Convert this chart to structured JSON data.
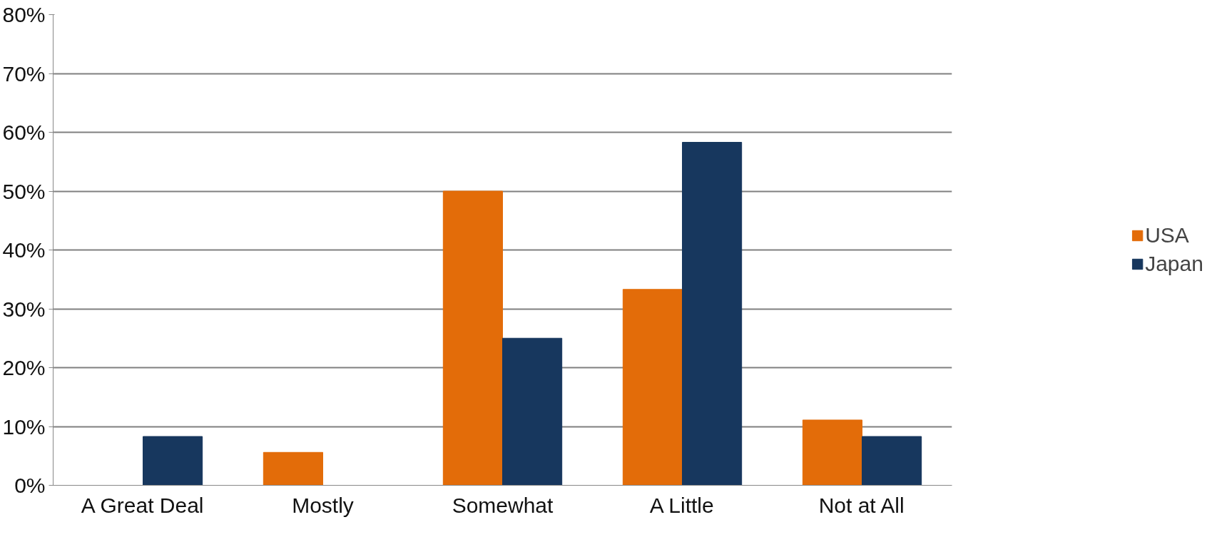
{
  "chart_data": {
    "type": "bar",
    "categories": [
      "A Great Deal",
      "Mostly",
      "Somewhat",
      "A Little",
      "Not at All"
    ],
    "series": [
      {
        "name": "USA",
        "color": "#e36c09",
        "values": [
          0,
          5.6,
          50,
          33.3,
          11.1
        ]
      },
      {
        "name": "Japan",
        "color": "#17375e",
        "values": [
          8.3,
          0,
          25,
          58.3,
          8.3
        ]
      }
    ],
    "ylim": [
      0,
      80
    ],
    "yticks": [
      {
        "value": 0,
        "label": "0%"
      },
      {
        "value": 10,
        "label": "10%"
      },
      {
        "value": 20,
        "label": "20%"
      },
      {
        "value": 30,
        "label": "30%"
      },
      {
        "value": 40,
        "label": "40%"
      },
      {
        "value": 50,
        "label": "50%"
      },
      {
        "value": 60,
        "label": "60%"
      },
      {
        "value": 70,
        "label": "70%"
      },
      {
        "value": 80,
        "label": "80%"
      }
    ],
    "grid": "y",
    "legend": "right"
  }
}
